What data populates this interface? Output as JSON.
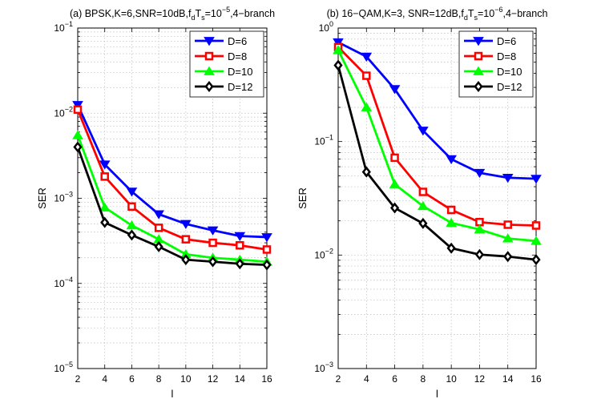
{
  "chart_data": [
    {
      "type": "line",
      "title_parts": {
        "prefix": "(a) BPSK,K=6,SNR=10dB,f",
        "sub1": "d",
        "mid": "T",
        "sub2": "s",
        "eq": "=10",
        "sup": "−5",
        "suffix": ",4−branch"
      },
      "title": "(a) BPSK,K=6,SNR=10dB,f_dT_s=10^-5,4-branch",
      "xlabel": "l",
      "ylabel": "SER",
      "yscale": "log",
      "xlim": [
        2,
        16
      ],
      "ylim": [
        1e-05,
        0.1
      ],
      "xticks": [
        2,
        4,
        6,
        8,
        10,
        12,
        14,
        16
      ],
      "xtick_labels": [
        "2",
        "4",
        "6",
        "8",
        "10",
        "12",
        "14",
        "16"
      ],
      "ydecades": [
        -5,
        -4,
        -3,
        -2,
        -1
      ],
      "grid": true,
      "legend_position": "top-right",
      "x": [
        2,
        4,
        6,
        8,
        10,
        12,
        14,
        16
      ],
      "series": [
        {
          "name": "D=6",
          "color": "#0000ff",
          "marker": "triangle-down",
          "values": [
            0.0125,
            0.0025,
            0.0012,
            0.00065,
            0.0005,
            0.00042,
            0.00036,
            0.00035
          ]
        },
        {
          "name": "D=8",
          "color": "#ff0000",
          "marker": "square",
          "values": [
            0.011,
            0.0018,
            0.0008,
            0.00045,
            0.00033,
            0.0003,
            0.00028,
            0.00025
          ]
        },
        {
          "name": "D=10",
          "color": "#00ff00",
          "marker": "triangle-up",
          "values": [
            0.0055,
            0.00078,
            0.00048,
            0.00033,
            0.00022,
            0.0002,
            0.00019,
            0.00018
          ]
        },
        {
          "name": "D=12",
          "color": "#000000",
          "marker": "diamond",
          "values": [
            0.004,
            0.00052,
            0.00037,
            0.00027,
            0.00019,
            0.00018,
            0.00017,
            0.000165
          ]
        }
      ]
    },
    {
      "type": "line",
      "title_parts": {
        "prefix": "(b) 16−QAM,K=3, SNR=12dB,f",
        "sub1": "d",
        "mid": "T",
        "sub2": "s",
        "eq": "=10",
        "sup": "−6",
        "suffix": ",4−branch"
      },
      "title": "(b) 16-QAM,K=3, SNR=12dB,f_dT_s=10^-6,4-branch",
      "xlabel": "l",
      "ylabel": "SER",
      "yscale": "log",
      "xlim": [
        2,
        16
      ],
      "ylim": [
        0.001,
        1
      ],
      "xticks": [
        2,
        4,
        6,
        8,
        10,
        12,
        14,
        16
      ],
      "xtick_labels": [
        "2",
        "4",
        "6",
        "8",
        "10",
        "12",
        "14",
        "16"
      ],
      "ydecades": [
        -3,
        -2,
        -1,
        0
      ],
      "grid": true,
      "legend_position": "top-right",
      "x": [
        2,
        4,
        6,
        8,
        10,
        12,
        14,
        16
      ],
      "series": [
        {
          "name": "D=6",
          "color": "#0000ff",
          "marker": "triangle-down",
          "values": [
            0.75,
            0.56,
            0.29,
            0.125,
            0.07,
            0.053,
            0.048,
            0.047
          ]
        },
        {
          "name": "D=8",
          "color": "#ff0000",
          "marker": "square",
          "values": [
            0.68,
            0.38,
            0.072,
            0.036,
            0.025,
            0.0195,
            0.0185,
            0.0182
          ]
        },
        {
          "name": "D=10",
          "color": "#00ff00",
          "marker": "triangle-up",
          "values": [
            0.64,
            0.2,
            0.042,
            0.027,
            0.0192,
            0.0168,
            0.014,
            0.0133
          ]
        },
        {
          "name": "D=12",
          "color": "#000000",
          "marker": "diamond",
          "values": [
            0.47,
            0.054,
            0.026,
            0.019,
            0.0115,
            0.0101,
            0.0097,
            0.0091
          ]
        }
      ]
    }
  ]
}
